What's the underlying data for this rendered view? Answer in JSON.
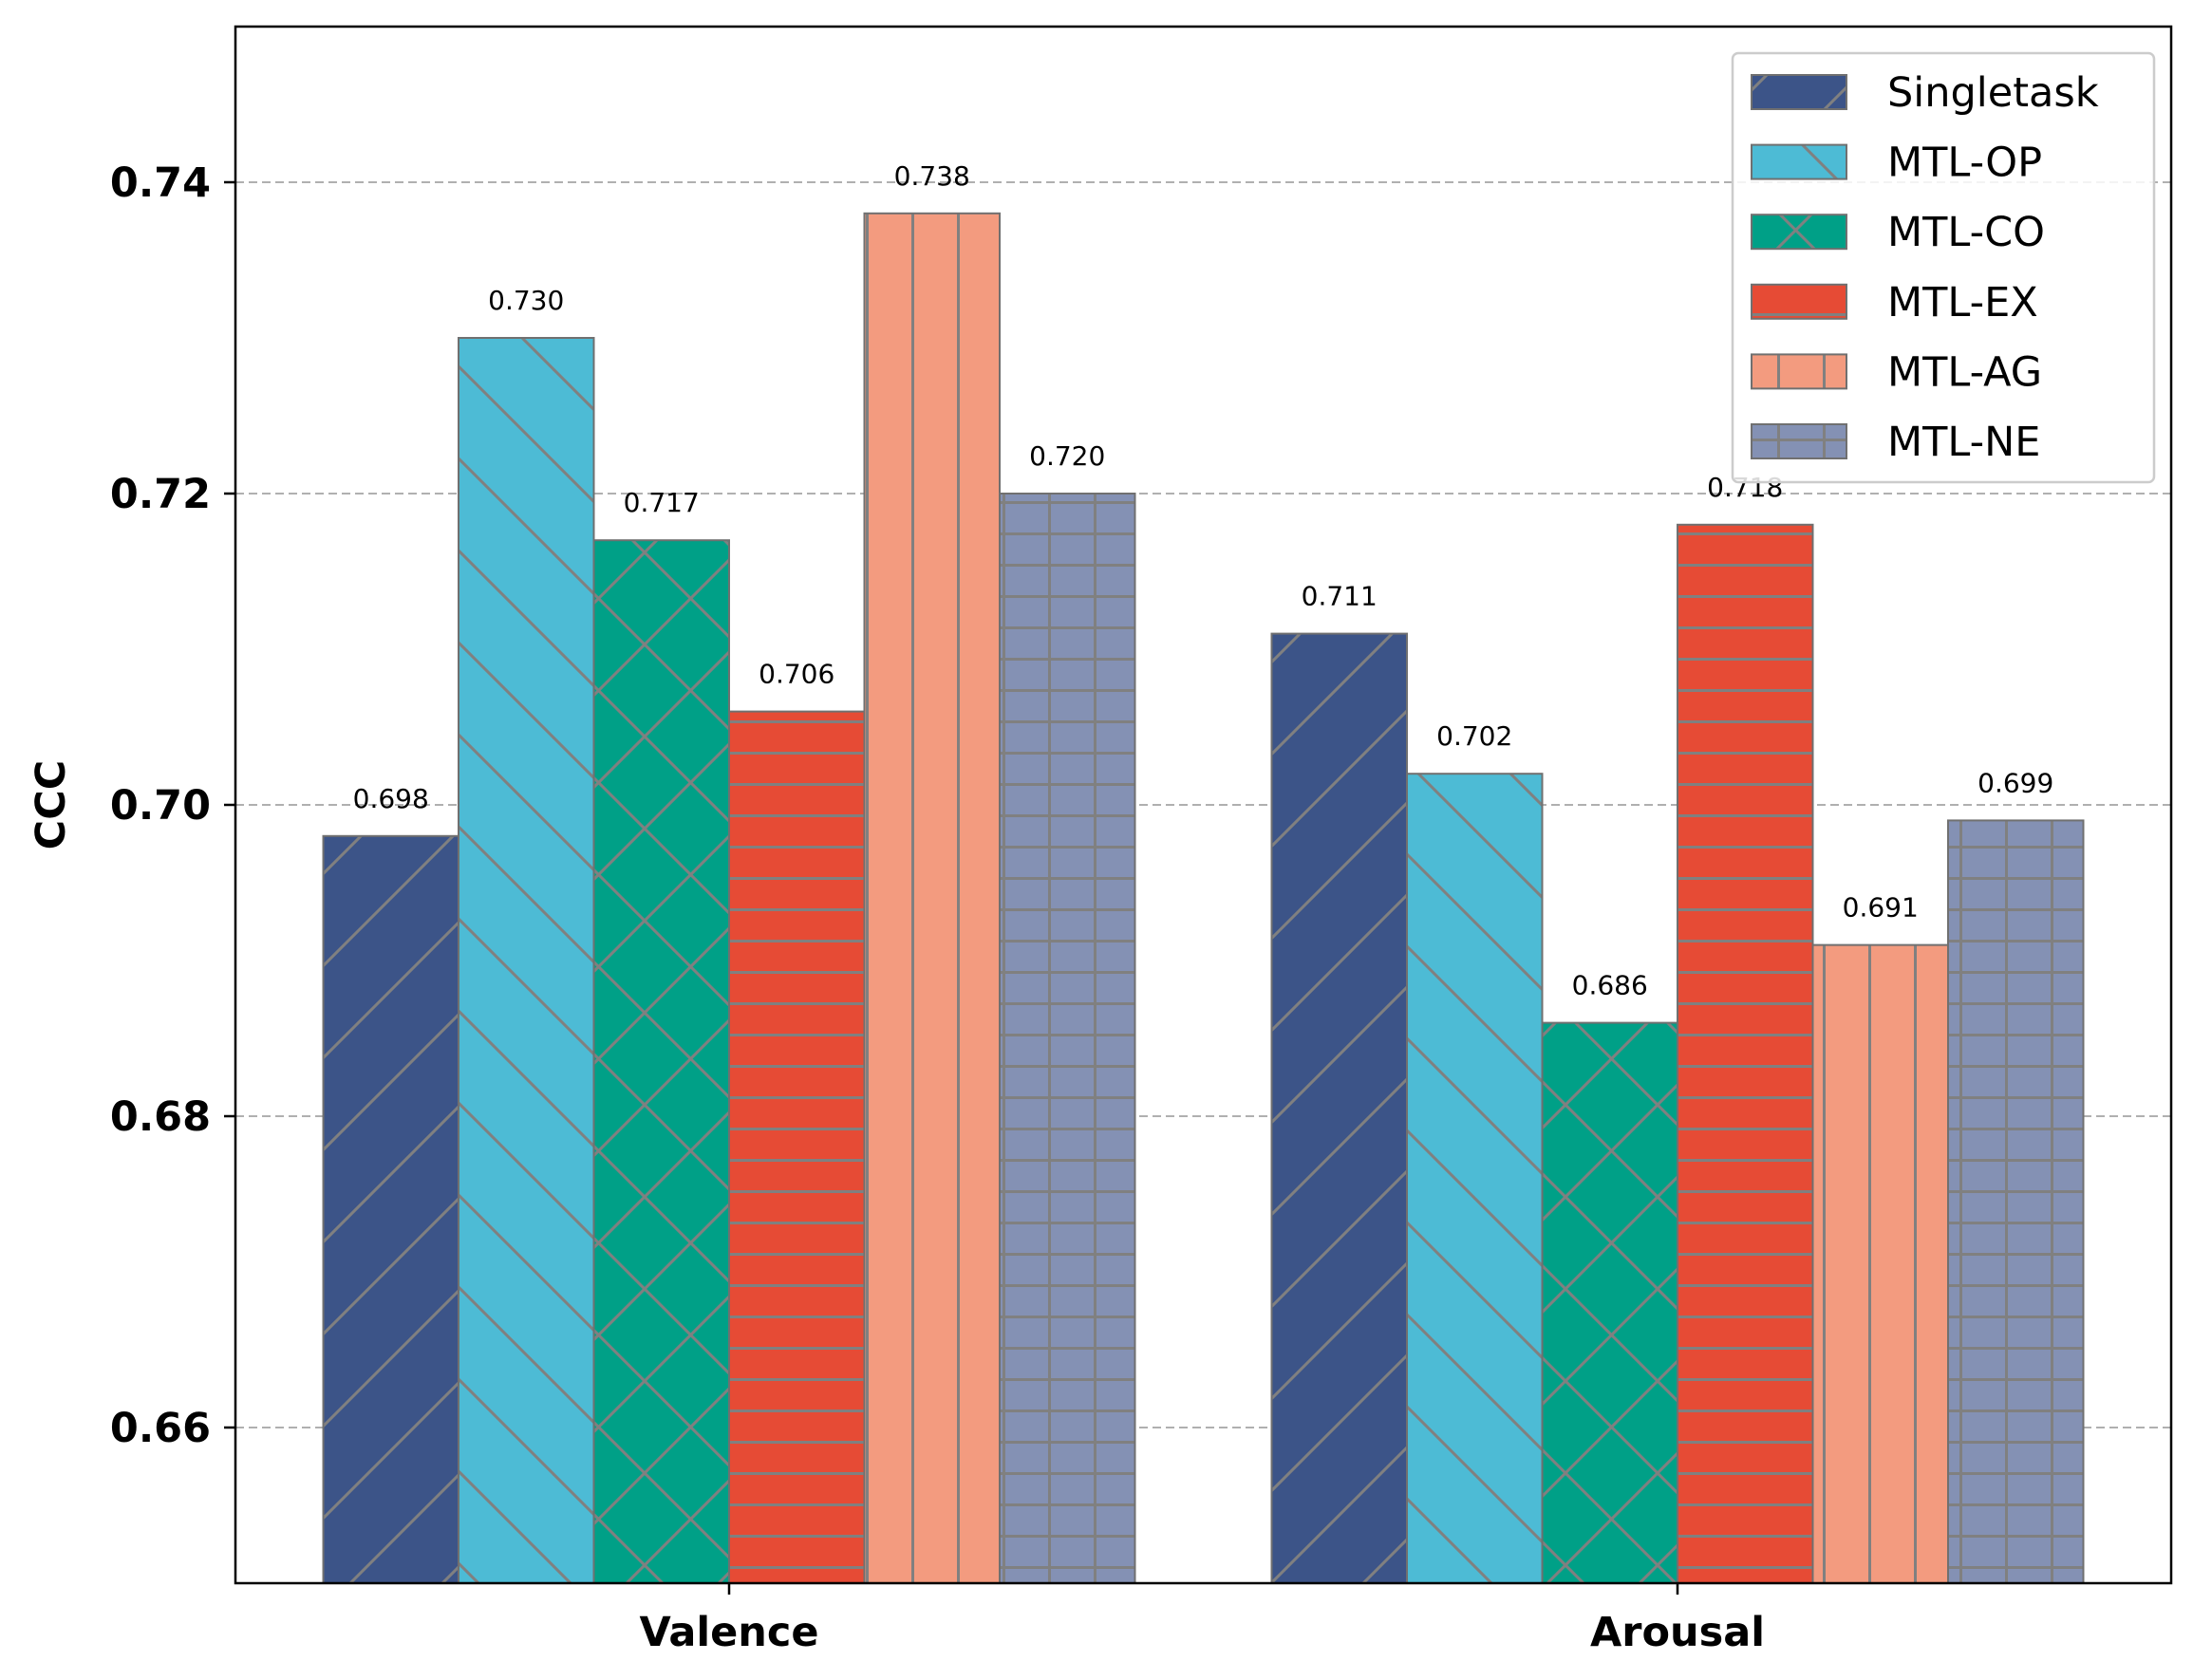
{
  "chart_data": {
    "type": "bar",
    "categories": [
      "Valence",
      "Arousal"
    ],
    "series": [
      {
        "name": "Singletask",
        "values": [
          0.698,
          0.711
        ],
        "labels": [
          "0.698",
          "0.711"
        ],
        "color": "#3c5488",
        "hatch": "diag-up"
      },
      {
        "name": "MTL-OP",
        "values": [
          0.73,
          0.702
        ],
        "labels": [
          "0.730",
          "0.702"
        ],
        "color": "#4dbbd5",
        "hatch": "diag-down"
      },
      {
        "name": "MTL-CO",
        "values": [
          0.717,
          0.686
        ],
        "labels": [
          "0.717",
          "0.686"
        ],
        "color": "#00a087",
        "hatch": "cross"
      },
      {
        "name": "MTL-EX",
        "values": [
          0.706,
          0.718
        ],
        "labels": [
          "0.706",
          "0.718"
        ],
        "color": "#e64b35",
        "hatch": "horizontal"
      },
      {
        "name": "MTL-AG",
        "values": [
          0.738,
          0.691
        ],
        "labels": [
          "0.738",
          "0.691"
        ],
        "color": "#f39b7f",
        "hatch": "vertical"
      },
      {
        "name": "MTL-NE",
        "values": [
          0.72,
          0.699
        ],
        "labels": [
          "0.720",
          "0.699"
        ],
        "color": "#8491b4",
        "hatch": "grid"
      }
    ],
    "ylabel": "CCC",
    "ylim": [
      0.65,
      0.75
    ],
    "yticks": [
      0.66,
      0.68,
      0.7,
      0.72,
      0.74
    ],
    "ytick_labels": [
      "0.66",
      "0.68",
      "0.70",
      "0.72",
      "0.74"
    ],
    "grid": "y-dashed",
    "legend": "top-right",
    "hatch_color": "#808080"
  }
}
